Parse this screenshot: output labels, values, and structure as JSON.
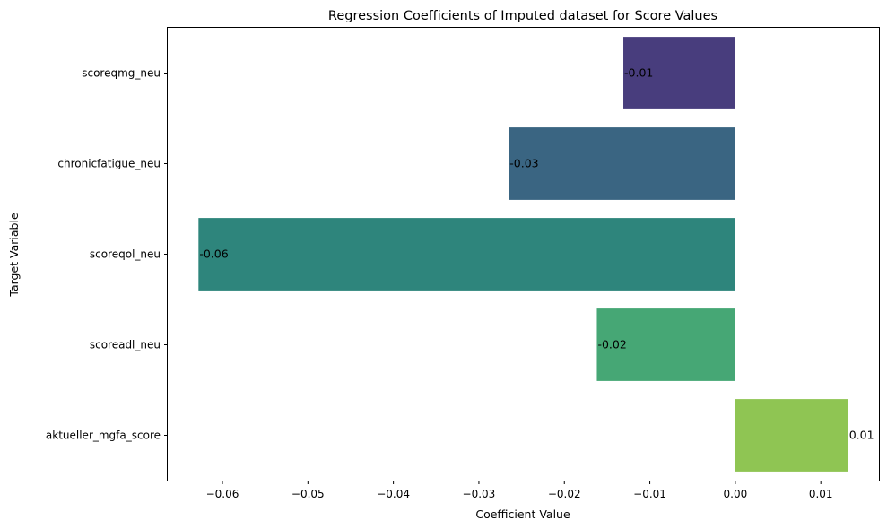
{
  "chart_data": {
    "type": "bar",
    "orientation": "horizontal",
    "title": "Regression Coefficients of Imputed dataset for Score Values",
    "xlabel": "Coefficient Value",
    "ylabel": "Target Variable",
    "categories": [
      "scoreqmg_neu",
      "chronicfatigue_neu",
      "scoreqol_neu",
      "scoreadl_neu",
      "aktueller_mgfa_score"
    ],
    "values": [
      -0.0131,
      -0.0265,
      -0.0628,
      -0.0162,
      0.0132
    ],
    "data_labels": [
      "-0.01",
      "-0.03",
      "-0.06",
      "-0.02",
      "0.01"
    ],
    "colors": [
      "#483d7d",
      "#3a6582",
      "#2e857c",
      "#46a775",
      "#8fc553"
    ],
    "xlim": [
      -0.0664,
      0.0168
    ],
    "xticks": [
      -0.06,
      -0.05,
      -0.04,
      -0.03,
      -0.02,
      -0.01,
      0.0,
      0.01
    ],
    "xtick_labels": [
      "−0.06",
      "−0.05",
      "−0.04",
      "−0.03",
      "−0.02",
      "−0.01",
      "0.00",
      "0.01"
    ],
    "grid": false,
    "legend": "none"
  }
}
